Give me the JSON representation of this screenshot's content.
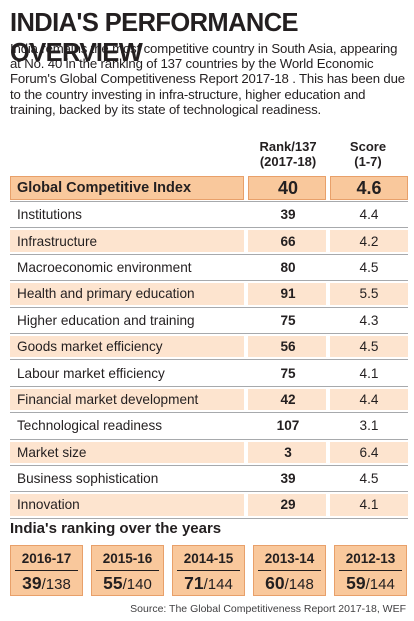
{
  "title": "INDIA'S PERFORMANCE OVERVIEW",
  "intro": "India remains the most competitive country in South Asia, appearing at No. 40 in the ranking of 137 countries by the World Economic Forum's Global Competitiveness Report 2017-18 . This has been due to the country investing in infra-structure, higher education and training, backed by its state of technological readiness.",
  "columns": {
    "rank_line1": "Rank/137",
    "rank_line2": "(2017-18)",
    "score_line1": "Score",
    "score_line2": "(1-7)"
  },
  "chart_data": [
    {
      "type": "table",
      "columns": [
        "Rank/137 (2017-18)",
        "Score (1-7)"
      ],
      "rows": [
        {
          "label": "Global Competitive Index",
          "rank": "40",
          "score": "4.6"
        },
        {
          "label": "Institutions",
          "rank": "39",
          "score": "4.4"
        },
        {
          "label": "Infrastructure",
          "rank": "66",
          "score": "4.2"
        },
        {
          "label": "Macroeconomic environment",
          "rank": "80",
          "score": "4.5"
        },
        {
          "label": "Health and primary education",
          "rank": "91",
          "score": "5.5"
        },
        {
          "label": "Higher education and training",
          "rank": "75",
          "score": "4.3"
        },
        {
          "label": "Goods market efficiency",
          "rank": "56",
          "score": "4.5"
        },
        {
          "label": "Labour market efficiency",
          "rank": "75",
          "score": "4.1"
        },
        {
          "label": "Financial market development",
          "rank": "42",
          "score": "4.4"
        },
        {
          "label": "Technological readiness",
          "rank": "107",
          "score": "3.1"
        },
        {
          "label": "Market size",
          "rank": "3",
          "score": "6.4"
        },
        {
          "label": "Business sophistication",
          "rank": "39",
          "score": "4.5"
        },
        {
          "label": "Innovation",
          "rank": "29",
          "score": "4.1"
        }
      ]
    },
    {
      "type": "table",
      "title": "India's ranking over the years",
      "items": [
        {
          "year": "2016-17",
          "rank": "39",
          "total": "/138"
        },
        {
          "year": "2015-16",
          "rank": "55",
          "total": "/140"
        },
        {
          "year": "2014-15",
          "rank": "71",
          "total": "/144"
        },
        {
          "year": "2013-14",
          "rank": "60",
          "total": "/148"
        },
        {
          "year": "2012-13",
          "rank": "59",
          "total": "/144"
        }
      ]
    }
  ],
  "source": "Source: The Global Competitiveness Report 2017-18, WEF",
  "colors": {
    "highlight": "#f9c89c",
    "shade": "#fde4cf",
    "border": "#e8a06a",
    "text": "#231f20"
  }
}
